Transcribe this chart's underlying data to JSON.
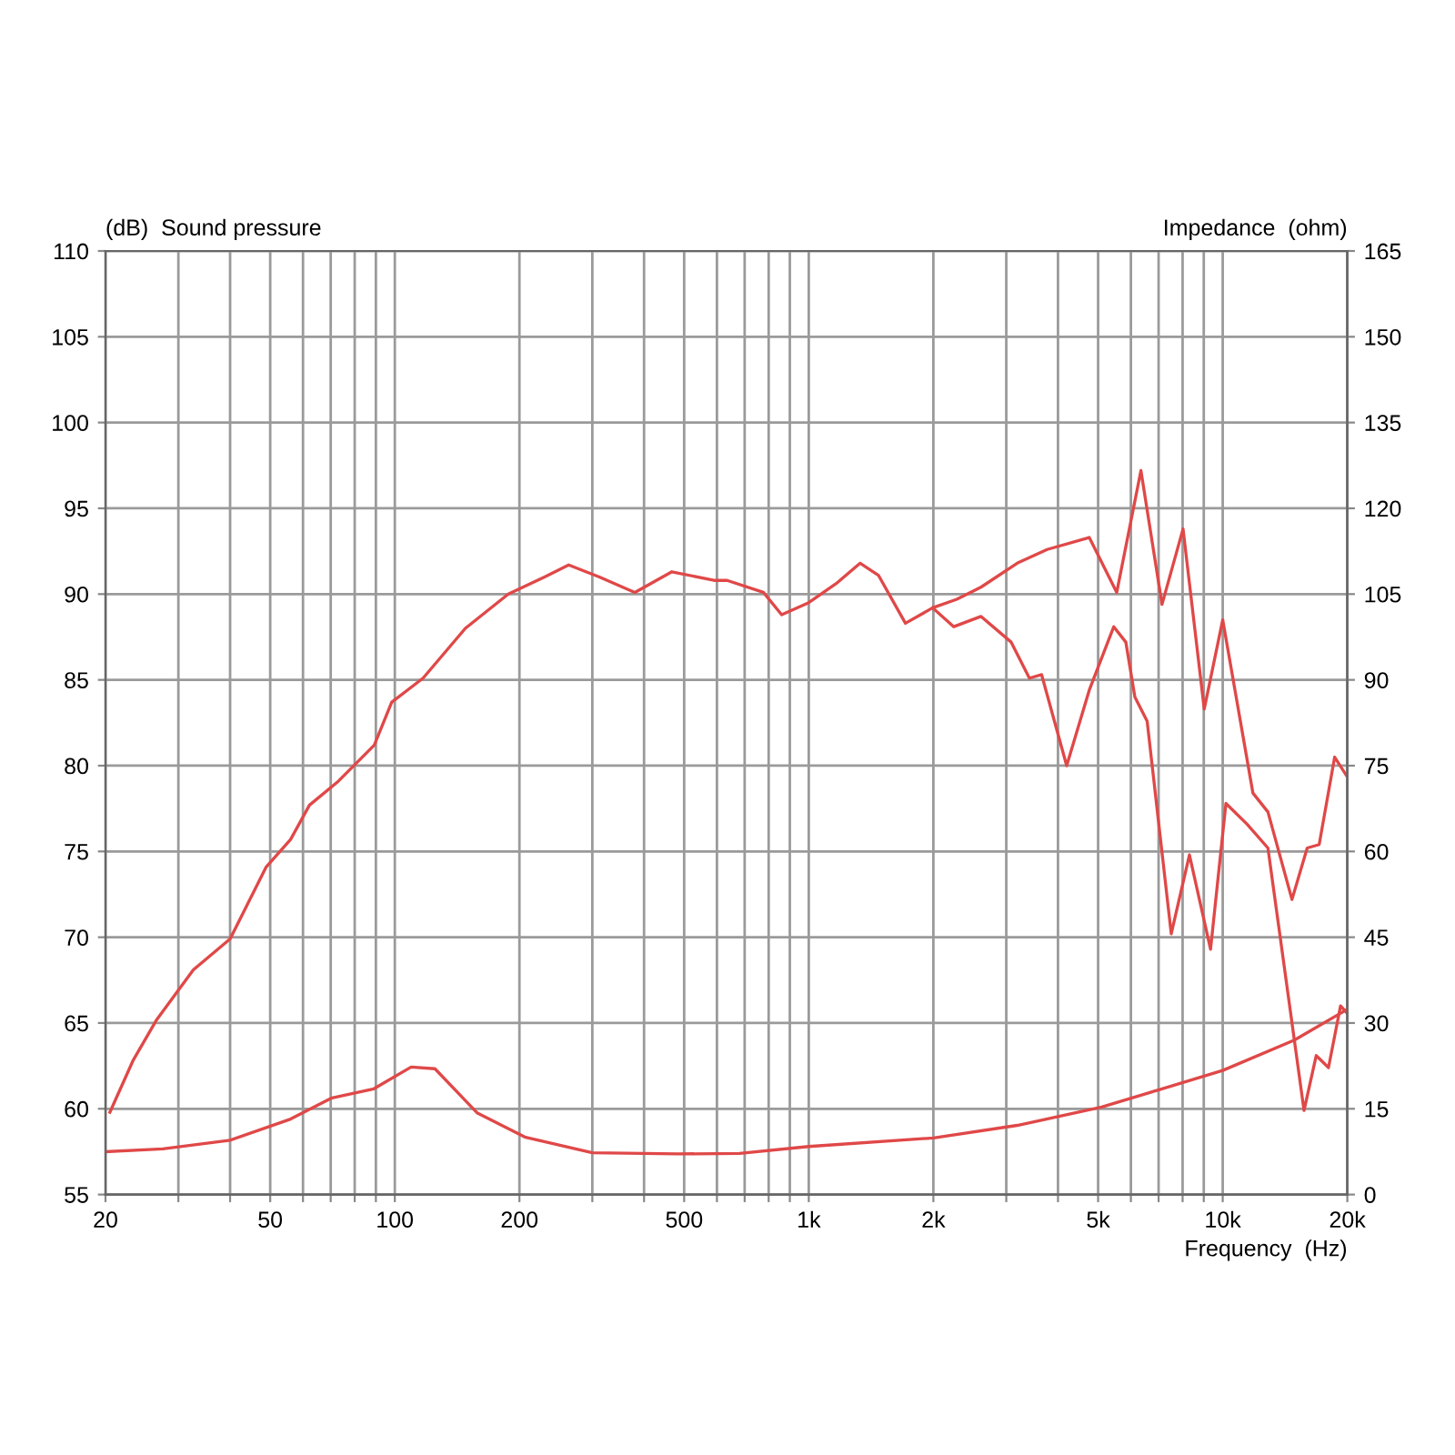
{
  "chart_data": {
    "type": "line",
    "ylabel": "(dB)  Sound pressure",
    "y2label": "Impedance  (ohm)",
    "xlabel": "Frequency  (Hz)",
    "log": "x",
    "grid": true,
    "marker": "none",
    "line_style": "solid",
    "xlim": [
      20,
      20000
    ],
    "xticks": [
      20,
      {
        "value": 30,
        "label": null
      },
      {
        "value": 40,
        "label": null
      },
      50,
      {
        "value": 60,
        "label": null
      },
      {
        "value": 70,
        "label": null
      },
      {
        "value": 80,
        "label": null
      },
      {
        "value": 90,
        "label": null
      },
      100,
      200,
      {
        "value": 300,
        "label": null
      },
      {
        "value": 400,
        "label": null
      },
      500,
      {
        "value": 600,
        "label": null
      },
      {
        "value": 700,
        "label": null
      },
      {
        "value": 800,
        "label": null
      },
      {
        "value": 900,
        "label": null
      },
      {
        "value": 1000,
        "label": "1k"
      },
      {
        "value": 2000,
        "label": "2k"
      },
      {
        "value": 3000,
        "label": null
      },
      {
        "value": 4000,
        "label": null
      },
      {
        "value": 5000,
        "label": "5k"
      },
      {
        "value": 6000,
        "label": null
      },
      {
        "value": 7000,
        "label": null
      },
      {
        "value": 8000,
        "label": null
      },
      {
        "value": 9000,
        "label": null
      },
      {
        "value": 10000,
        "label": "10k"
      },
      {
        "value": 20000,
        "label": "20k"
      }
    ],
    "ylim": [
      55,
      110
    ],
    "yticks": [
      55,
      60,
      65,
      70,
      75,
      80,
      85,
      90,
      95,
      100,
      105,
      110
    ],
    "y2lim": [
      0,
      165
    ],
    "y2ticks": [
      0,
      15,
      30,
      45,
      60,
      75,
      90,
      105,
      120,
      135,
      150,
      165
    ],
    "series": [
      {
        "color": "#e04848",
        "x": [
          20.5,
          23.3,
          26.6,
          32.6,
          40,
          48.9,
          56,
          62.2,
          73.1,
          89.2,
          98.3,
          117,
          148,
          188,
          230,
          263,
          312,
          380,
          467,
          590,
          635,
          777,
          860,
          1000,
          1163,
          1331,
          1473,
          1712,
          1992,
          2278,
          2605,
          3188,
          3766,
          4760,
          5546,
          6345,
          7135,
          8020,
          9023,
          10000,
          11830,
          12860,
          14700,
          16000,
          17100,
          18640,
          19930
        ],
        "values": [
          59.8,
          62.8,
          65.2,
          68.1,
          69.9,
          74.1,
          75.7,
          77.7,
          79.1,
          81.2,
          83.7,
          85.1,
          88,
          90,
          91,
          91.7,
          91,
          90.1,
          91.3,
          90.8,
          90.8,
          90.1,
          88.8,
          89.5,
          90.6,
          91.8,
          91.1,
          88.3,
          89.2,
          89.7,
          90.4,
          91.8,
          92.6,
          93.3,
          90.1,
          97.2,
          89.4,
          93.8,
          83.3,
          88.5,
          78.4,
          77.3,
          72.2,
          75.2,
          75.4,
          80.5,
          79.4
        ]
      },
      {
        "color": "#e04848",
        "x": [
          1992,
          2240,
          2605,
          3083,
          3412,
          3652,
          4198,
          4760,
          5455,
          5834,
          6135,
          6567,
          7510,
          8310,
          9346,
          10180,
          11440,
          12860,
          15720,
          16820,
          18010,
          19260,
          19930
        ],
        "values": [
          89.2,
          88.1,
          88.7,
          87.2,
          85.1,
          85.3,
          80,
          84.4,
          88.1,
          87.2,
          84,
          82.6,
          70.2,
          74.8,
          69.3,
          77.8,
          76.6,
          75.2,
          59.9,
          63.1,
          62.4,
          66,
          65.6
        ]
      },
      {
        "color": "#e04848",
        "axis": "y2",
        "x": [
          20,
          27.5,
          40,
          56,
          70.5,
          89,
          109.5,
          125,
          158,
          207,
          300,
          482,
          680,
          1000,
          2000,
          3190,
          5100,
          6700,
          10000,
          14900,
          19900
        ],
        "values": [
          7.5,
          8,
          9.5,
          13.2,
          16.9,
          18.5,
          22.3,
          22,
          14.3,
          10,
          7.3,
          7.1,
          7.2,
          8.4,
          9.9,
          12.1,
          15.3,
          17.9,
          21.7,
          27,
          32.3
        ]
      }
    ]
  }
}
